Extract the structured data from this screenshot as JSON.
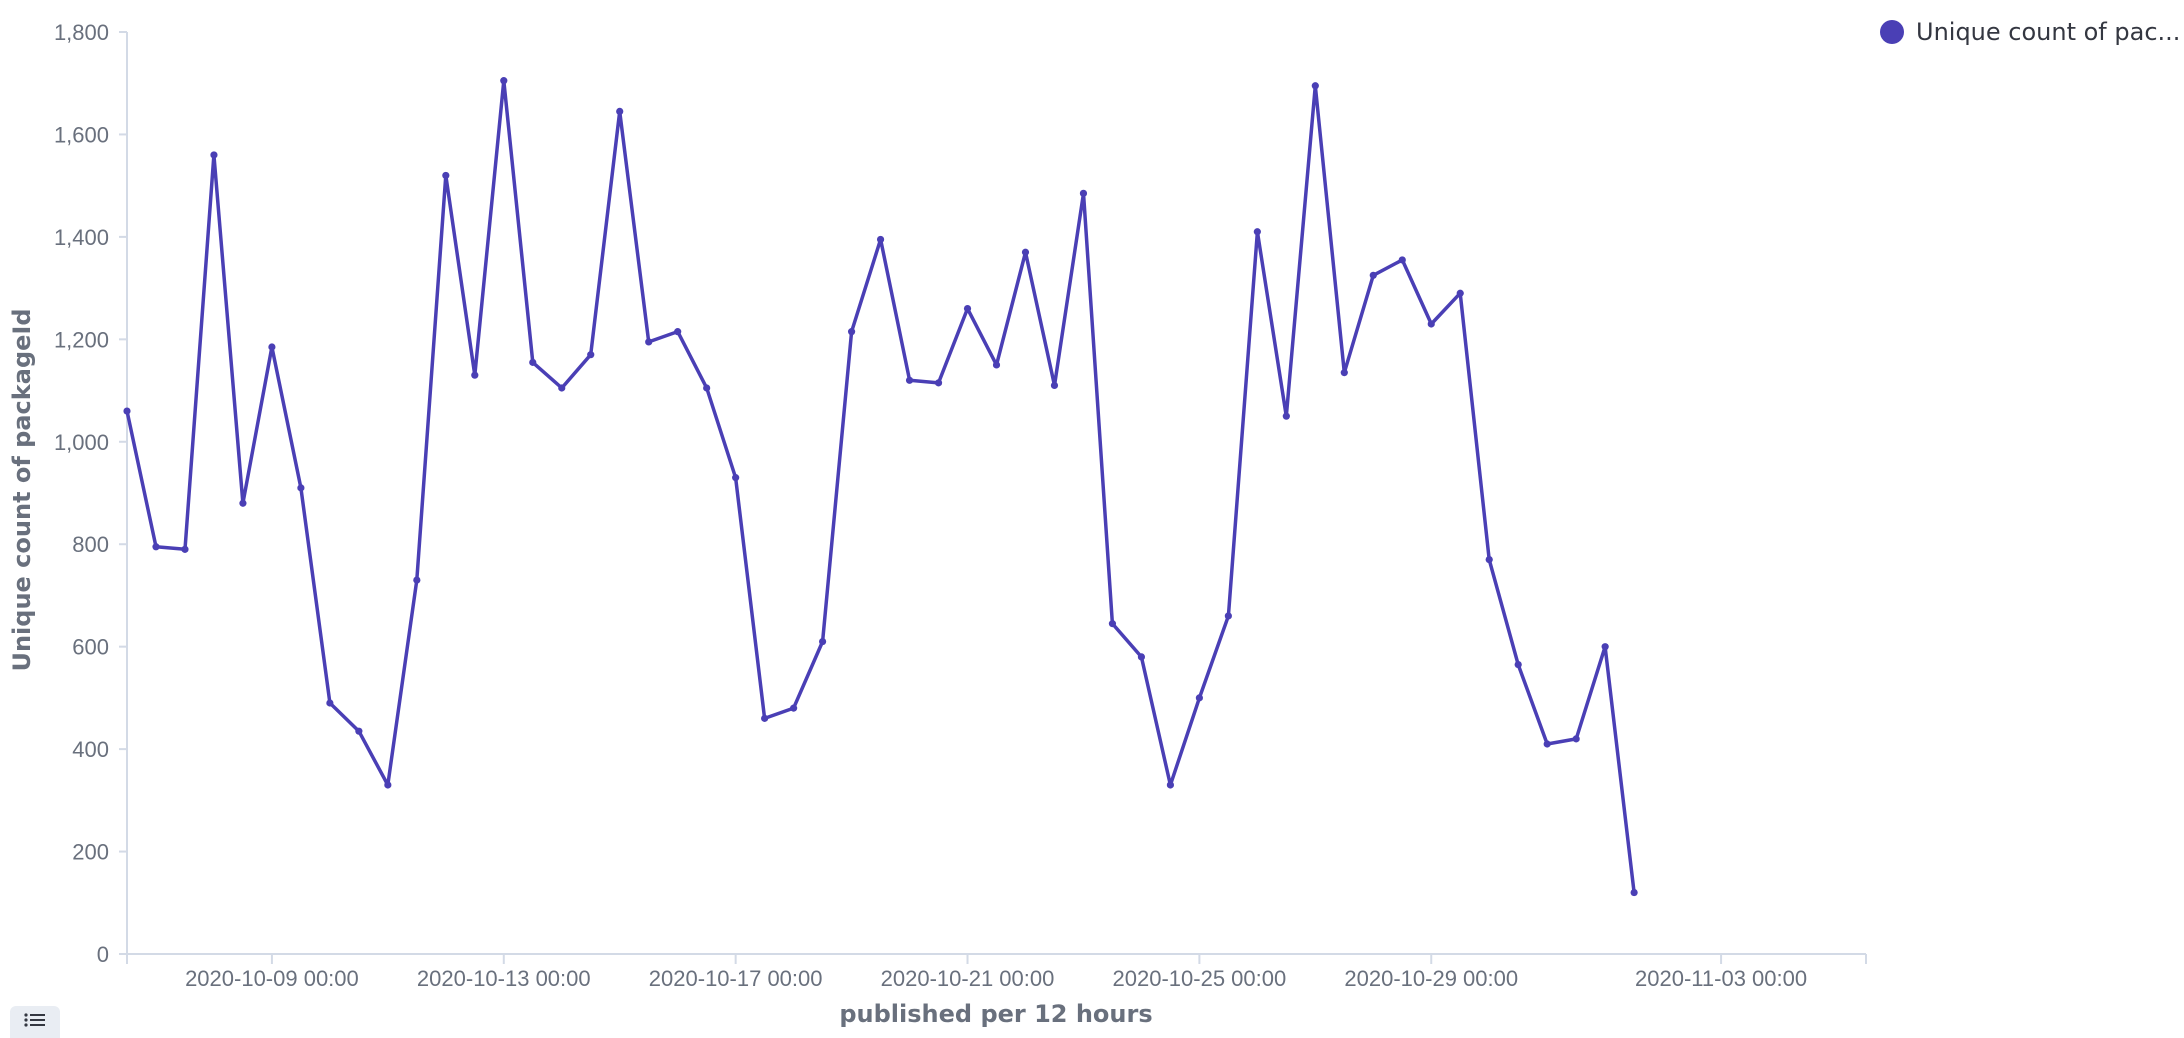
{
  "legend": {
    "label": "Unique count of pac...",
    "color": "#4a3fb5"
  },
  "legend_toggle_icon": "list-icon",
  "chart_data": {
    "type": "line",
    "xlabel": "published per 12 hours",
    "ylabel": "Unique count of packageId",
    "ylim": [
      0,
      1800
    ],
    "yticks": [
      0,
      200,
      400,
      600,
      800,
      1000,
      1200,
      1400,
      1600,
      1800
    ],
    "ytick_labels": [
      "0",
      "200",
      "400",
      "600",
      "800",
      "1,000",
      "1,200",
      "1,400",
      "1,600",
      "1,800"
    ],
    "xlim": [
      "2020-10-06 12:00",
      "2020-11-05 12:00"
    ],
    "xticks": [
      "2020-10-09 00:00",
      "2020-10-13 00:00",
      "2020-10-17 00:00",
      "2020-10-21 00:00",
      "2020-10-25 00:00",
      "2020-10-29 00:00",
      "2020-11-03 00:00"
    ],
    "series": [
      {
        "name": "Unique count of pac...",
        "color": "#4a3fb5",
        "x": [
          "2020-10-06 12:00",
          "2020-10-07 00:00",
          "2020-10-07 12:00",
          "2020-10-08 00:00",
          "2020-10-08 12:00",
          "2020-10-09 00:00",
          "2020-10-09 12:00",
          "2020-10-10 00:00",
          "2020-10-10 12:00",
          "2020-10-11 00:00",
          "2020-10-11 12:00",
          "2020-10-12 00:00",
          "2020-10-12 12:00",
          "2020-10-13 00:00",
          "2020-10-13 12:00",
          "2020-10-14 00:00",
          "2020-10-14 12:00",
          "2020-10-15 00:00",
          "2020-10-15 12:00",
          "2020-10-16 00:00",
          "2020-10-16 12:00",
          "2020-10-17 00:00",
          "2020-10-17 12:00",
          "2020-10-18 00:00",
          "2020-10-18 12:00",
          "2020-10-19 00:00",
          "2020-10-19 12:00",
          "2020-10-20 00:00",
          "2020-10-20 12:00",
          "2020-10-21 00:00",
          "2020-10-21 12:00",
          "2020-10-22 00:00",
          "2020-10-22 12:00",
          "2020-10-23 00:00",
          "2020-10-23 12:00",
          "2020-10-24 00:00",
          "2020-10-24 12:00",
          "2020-10-25 00:00",
          "2020-10-25 12:00",
          "2020-10-26 00:00",
          "2020-10-26 12:00",
          "2020-10-27 00:00",
          "2020-10-27 12:00",
          "2020-10-28 00:00",
          "2020-10-28 12:00",
          "2020-10-29 00:00",
          "2020-10-29 12:00",
          "2020-10-30 00:00",
          "2020-10-30 12:00",
          "2020-10-31 00:00",
          "2020-10-31 12:00",
          "2020-11-01 00:00",
          "2020-11-01 12:00"
        ],
        "values": [
          1060,
          795,
          790,
          1560,
          880,
          1185,
          910,
          490,
          435,
          330,
          730,
          1520,
          1130,
          1705,
          1155,
          1105,
          1170,
          1645,
          1195,
          1215,
          1105,
          930,
          460,
          480,
          610,
          1215,
          1395,
          1120,
          1115,
          1260,
          1150,
          1370,
          1110,
          1485,
          645,
          580,
          330,
          500,
          660,
          1410,
          1050,
          1695,
          1135,
          1325,
          1355,
          1230,
          1290,
          770,
          565,
          410,
          420,
          600,
          120
        ]
      }
    ]
  }
}
